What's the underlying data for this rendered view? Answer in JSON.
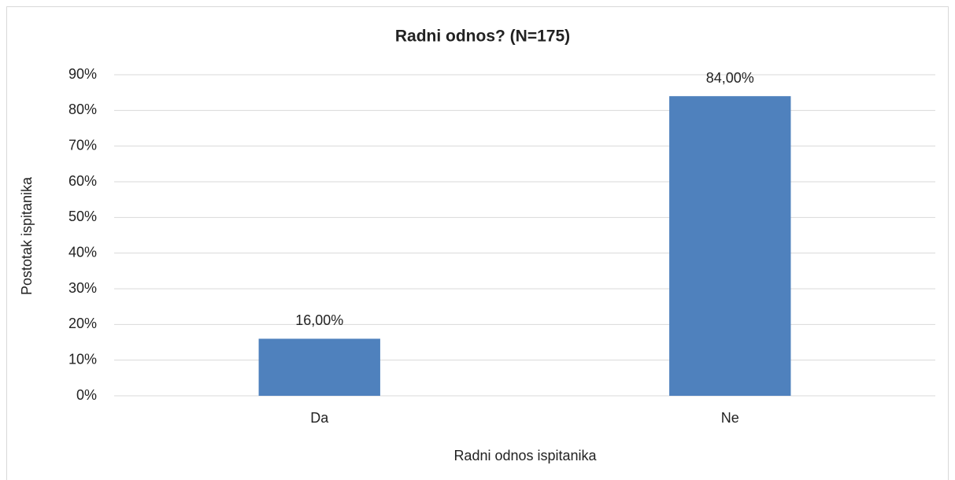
{
  "chart_data": {
    "type": "bar",
    "title": "Radni odnos? (N=175)",
    "x_label": "Radni odnos ispitanika",
    "y_label": "Postotak ispitanika",
    "categories": [
      "Da",
      "Ne"
    ],
    "values": [
      16,
      84
    ],
    "value_labels": [
      "16,00%",
      "84,00%"
    ],
    "color": "#4f81bd",
    "ylim": [
      0,
      90
    ],
    "yticks": [
      {
        "value": 0,
        "label": "0%"
      },
      {
        "value": 10,
        "label": "10%"
      },
      {
        "value": 20,
        "label": "20%"
      },
      {
        "value": 30,
        "label": "30%"
      },
      {
        "value": 40,
        "label": "40%"
      },
      {
        "value": 50,
        "label": "50%"
      },
      {
        "value": 60,
        "label": "60%"
      },
      {
        "value": 70,
        "label": "70%"
      },
      {
        "value": 80,
        "label": "80%"
      },
      {
        "value": 90,
        "label": "90%"
      }
    ],
    "grid": true
  }
}
